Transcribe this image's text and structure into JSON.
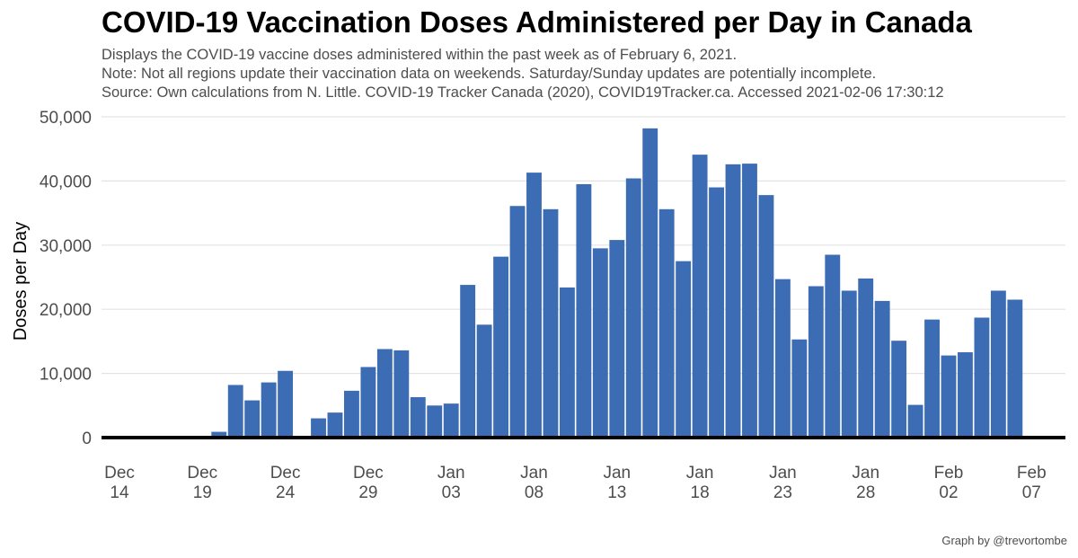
{
  "header": {
    "title": "COVID-19 Vaccination Doses Administered per Day in Canada",
    "subtitle_lines": [
      "Displays the COVID-19 vaccine doses administered within the past week as of February 6, 2021.",
      "Note: Not all regions update their vaccination data on weekends. Saturday/Sunday updates are potentially incomplete.",
      "Source: Own calculations from N. Little. COVID-19 Tracker Canada (2020), COVID19Tracker.ca. Accessed 2021-02-06 17:30:12"
    ]
  },
  "credit": "Graph by @trevortombe",
  "colors": {
    "bar": "#3b6cb4",
    "grid": "#e3e3e3",
    "baseline": "#000000"
  },
  "chart_data": {
    "type": "bar",
    "ylabel": "Doses per Day",
    "ylim": [
      0,
      50000
    ],
    "y_ticks": [
      0,
      10000,
      20000,
      30000,
      40000,
      50000
    ],
    "y_tick_labels": [
      "0",
      "10,000",
      "20,000",
      "30,000",
      "40,000",
      "50,000"
    ],
    "x_start_date": "2020-12-14",
    "x_ticks": [
      {
        "day": 0,
        "line1": "Dec",
        "line2": "14"
      },
      {
        "day": 5,
        "line1": "Dec",
        "line2": "19"
      },
      {
        "day": 10,
        "line1": "Dec",
        "line2": "24"
      },
      {
        "day": 15,
        "line1": "Dec",
        "line2": "29"
      },
      {
        "day": 20,
        "line1": "Jan",
        "line2": "03"
      },
      {
        "day": 25,
        "line1": "Jan",
        "line2": "08"
      },
      {
        "day": 30,
        "line1": "Jan",
        "line2": "13"
      },
      {
        "day": 35,
        "line1": "Jan",
        "line2": "18"
      },
      {
        "day": 40,
        "line1": "Jan",
        "line2": "23"
      },
      {
        "day": 45,
        "line1": "Jan",
        "line2": "28"
      },
      {
        "day": 50,
        "line1": "Feb",
        "line2": "02"
      },
      {
        "day": 55,
        "line1": "Feb",
        "line2": "07"
      }
    ],
    "x_range": [
      0,
      55
    ],
    "grid": true,
    "legend": "none",
    "values": [
      0,
      0,
      0,
      0,
      0,
      0,
      900,
      8200,
      5800,
      8600,
      10400,
      200,
      3000,
      3900,
      7300,
      11000,
      13800,
      13600,
      6300,
      5000,
      5300,
      23800,
      17600,
      28200,
      36100,
      41300,
      35600,
      23400,
      39500,
      29500,
      30800,
      40400,
      48200,
      35600,
      27500,
      44100,
      39000,
      42600,
      42700,
      37800,
      24700,
      15300,
      23600,
      28500,
      22900,
      24800,
      21300,
      15100,
      5100,
      18400,
      12800,
      13300,
      18700,
      22900,
      21500
    ]
  }
}
